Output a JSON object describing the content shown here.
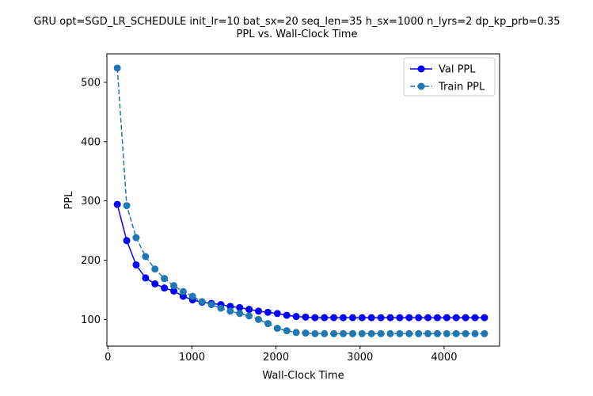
{
  "chart_data": {
    "type": "line",
    "title": "GRU opt=SGD_LR_SCHEDULE init_lr=10 bat_sx=20 seq_len=35 h_sx=1000 n_lyrs=2 dp_kp_prb=0.35",
    "subtitle": "PPL vs. Wall-Clock Time",
    "xlabel": "Wall-Clock Time",
    "ylabel": "PPL",
    "xlim": [
      -12,
      4660
    ],
    "ylim": [
      55,
      548
    ],
    "xticks": [
      0,
      1000,
      2000,
      3000,
      4000
    ],
    "yticks": [
      100,
      200,
      300,
      400,
      500
    ],
    "legend_position": "upper right",
    "x": [
      112,
      224,
      336,
      448,
      560,
      672,
      784,
      896,
      1008,
      1120,
      1232,
      1344,
      1456,
      1568,
      1680,
      1792,
      1904,
      2016,
      2128,
      2240,
      2352,
      2464,
      2576,
      2688,
      2800,
      2912,
      3024,
      3136,
      3248,
      3360,
      3472,
      3584,
      3696,
      3808,
      3920,
      4032,
      4144,
      4256,
      4368,
      4480
    ],
    "series": [
      {
        "name": "Val PPL",
        "color": "#0000ff",
        "linestyle": "solid",
        "marker": "circle",
        "values": [
          294,
          233,
          192,
          170,
          160,
          153,
          148,
          139,
          133,
          129,
          127,
          125,
          122,
          120,
          117,
          114,
          112,
          110,
          107,
          105,
          104,
          103,
          103,
          103,
          103,
          103,
          103,
          103,
          103,
          103,
          103,
          103,
          103,
          103,
          103,
          103,
          103,
          103,
          103,
          103
        ]
      },
      {
        "name": "Train PPL",
        "color": "#1f77b4",
        "linestyle": "dashed",
        "marker": "circle",
        "values": [
          524,
          292,
          238,
          206,
          185,
          169,
          157,
          147,
          139,
          130,
          125,
          119,
          114,
          110,
          106,
          100,
          93,
          85,
          81,
          78,
          77,
          76,
          76,
          76,
          76,
          76,
          76,
          76,
          76,
          76,
          76,
          76,
          76,
          76,
          76,
          76,
          76,
          76,
          76,
          76
        ]
      }
    ]
  }
}
